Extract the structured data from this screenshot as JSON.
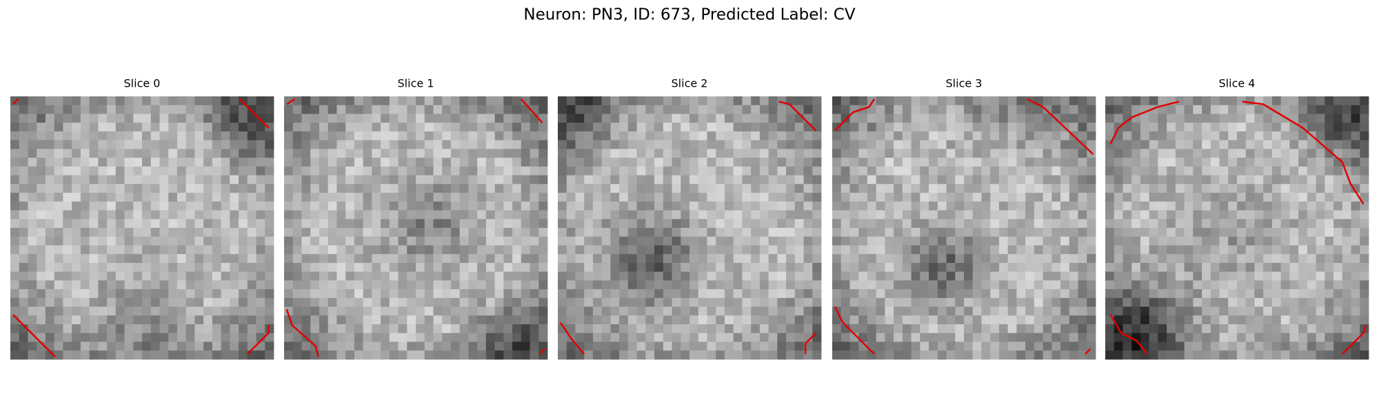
{
  "title": "Neuron: PN3, ID: 673, Predicted Label: CV",
  "panels": [
    {
      "title": "Slice 0"
    },
    {
      "title": "Slice 1"
    },
    {
      "title": "Slice 2"
    },
    {
      "title": "Slice 3"
    },
    {
      "title": "Slice 4"
    }
  ]
}
